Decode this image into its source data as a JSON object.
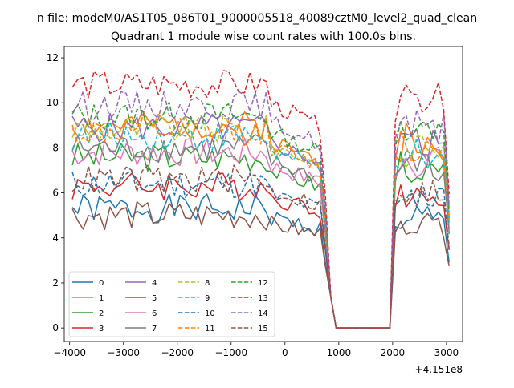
{
  "chart_data": {
    "type": "line",
    "suptitle": "n file: modeM0/AS1T05_086T01_9000005518_40089cztM0_level2_quad_clean",
    "title": "Quadrant 1 module wise count rates with 100.0s bins.",
    "xlabel": "",
    "ylabel": "",
    "x_offset_label": "+4.151e8",
    "xlim": [
      -4100,
      3300
    ],
    "ylim": [
      -0.6,
      12.5
    ],
    "xticks": [
      -4000,
      -3000,
      -2000,
      -1000,
      0,
      1000,
      2000,
      3000
    ],
    "xtick_labels": [
      "−4000",
      "−3000",
      "−2000",
      "−1000",
      "0",
      "1000",
      "2000",
      "3000"
    ],
    "yticks": [
      0,
      2,
      4,
      6,
      8,
      10,
      12
    ],
    "ytick_labels": [
      "0",
      "2",
      "4",
      "6",
      "8",
      "10",
      "12"
    ],
    "grid": false,
    "legend_position": "lower-left",
    "series": [
      {
        "name": "0",
        "color": "#1f77b4",
        "dashed": false,
        "level": 5.3,
        "seed": 1
      },
      {
        "name": "1",
        "color": "#ff7f0e",
        "dashed": false,
        "level": 9.0,
        "seed": 2
      },
      {
        "name": "2",
        "color": "#2ca02c",
        "dashed": false,
        "level": 7.6,
        "seed": 3
      },
      {
        "name": "3",
        "color": "#d62728",
        "dashed": false,
        "level": 6.3,
        "seed": 4
      },
      {
        "name": "4",
        "color": "#9467bd",
        "dashed": false,
        "level": 8.9,
        "seed": 5
      },
      {
        "name": "5",
        "color": "#8c564b",
        "dashed": false,
        "level": 5.0,
        "seed": 6
      },
      {
        "name": "6",
        "color": "#e377c2",
        "dashed": false,
        "level": 7.8,
        "seed": 7
      },
      {
        "name": "7",
        "color": "#7f7f7f",
        "dashed": false,
        "level": 8.0,
        "seed": 8
      },
      {
        "name": "8",
        "color": "#bcbd22",
        "dashed": true,
        "level": 8.8,
        "seed": 9
      },
      {
        "name": "9",
        "color": "#17becf",
        "dashed": true,
        "level": 8.5,
        "seed": 10
      },
      {
        "name": "10",
        "color": "#1f77b4",
        "dashed": true,
        "level": 6.4,
        "seed": 11
      },
      {
        "name": "11",
        "color": "#ff7f0e",
        "dashed": true,
        "level": 8.7,
        "seed": 12
      },
      {
        "name": "12",
        "color": "#2ca02c",
        "dashed": true,
        "level": 9.4,
        "seed": 13
      },
      {
        "name": "13",
        "color": "#d62728",
        "dashed": true,
        "level": 10.8,
        "seed": 14
      },
      {
        "name": "14",
        "color": "#9467bd",
        "dashed": true,
        "level": 9.9,
        "seed": 15
      },
      {
        "name": "15",
        "color": "#8c564b",
        "dashed": true,
        "level": 6.6,
        "seed": 16
      }
    ]
  }
}
